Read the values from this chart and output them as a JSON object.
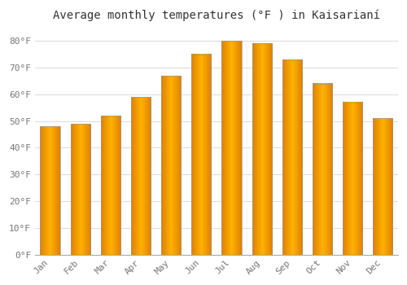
{
  "title": "Average monthly temperatures (°F ) in Kaisarianí",
  "months": [
    "Jan",
    "Feb",
    "Mar",
    "Apr",
    "May",
    "Jun",
    "Jul",
    "Aug",
    "Sep",
    "Oct",
    "Nov",
    "Dec"
  ],
  "values": [
    48,
    49,
    52,
    59,
    67,
    75,
    80,
    79,
    73,
    64,
    57,
    51
  ],
  "bar_color_center": "#FFB300",
  "bar_color_edge": "#E08000",
  "bar_outline_color": "#999999",
  "background_color": "#FFFFFF",
  "grid_color": "#dddddd",
  "yticks": [
    0,
    10,
    20,
    30,
    40,
    50,
    60,
    70,
    80
  ],
  "ylim": [
    0,
    85
  ],
  "title_fontsize": 10,
  "tick_fontsize": 8,
  "font_family": "monospace",
  "tick_color": "#777777"
}
